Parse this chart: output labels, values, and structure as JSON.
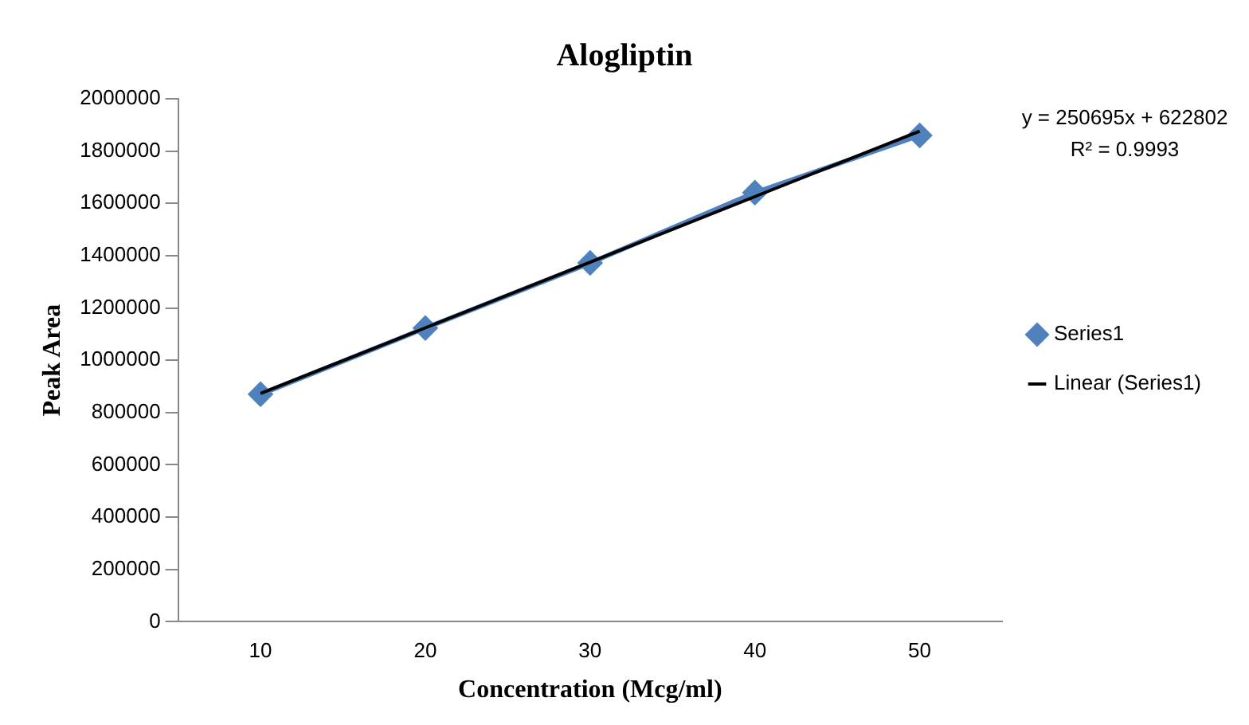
{
  "chart_data": {
    "type": "line",
    "title": "Alogliptin",
    "xlabel": "Concentration (Mcg/ml)",
    "ylabel": "Peak Area",
    "categories": [
      "10",
      "20",
      "30",
      "40",
      "50"
    ],
    "series": [
      {
        "name": "Series1",
        "color": "#4f81bd",
        "values": [
          870000,
          1123000,
          1372000,
          1641000,
          1860000
        ],
        "marker": "diamond"
      },
      {
        "name": "Linear (Series1)",
        "color": "#000000",
        "values": [
          873000,
          1124000,
          1375000,
          1626000,
          1876000
        ],
        "marker": "none"
      }
    ],
    "ylim": [
      0,
      2000000
    ],
    "yticks": [
      0,
      200000,
      400000,
      600000,
      800000,
      1000000,
      1200000,
      1400000,
      1600000,
      1800000,
      2000000
    ],
    "annotations": [
      "y = 250695x + 622802",
      "R² = 0.9993"
    ],
    "grid": false,
    "legend": "right",
    "line_style": "solid"
  }
}
